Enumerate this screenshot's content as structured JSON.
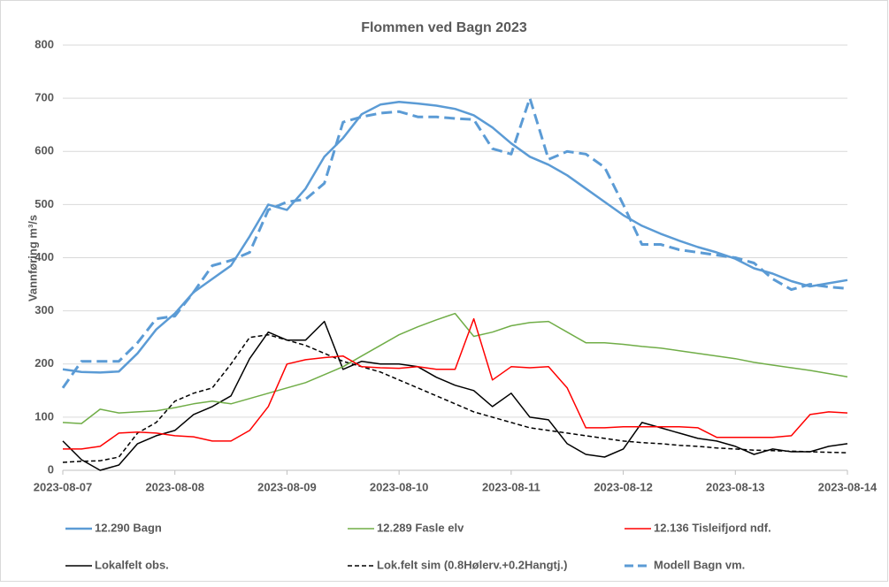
{
  "chart_data": {
    "type": "line",
    "title": "Flommen ved Bagn 2023",
    "y_label": "Vannføring m³/s",
    "categories": [
      "2023-08-07",
      null,
      null,
      null,
      null,
      null,
      "2023-08-08",
      null,
      null,
      null,
      null,
      null,
      "2023-08-09",
      null,
      null,
      null,
      null,
      null,
      "2023-08-10",
      null,
      null,
      null,
      null,
      null,
      "2023-08-11",
      null,
      null,
      null,
      null,
      null,
      "2023-08-12",
      null,
      null,
      null,
      null,
      null,
      "2023-08-13",
      null,
      null,
      null,
      null,
      null,
      "2023-08-14"
    ],
    "ylim": [
      0,
      800
    ],
    "yticks": [
      0,
      100,
      200,
      300,
      400,
      500,
      600,
      700,
      800
    ],
    "grid": true,
    "series": [
      {
        "name": "12.290 Bagn",
        "color": "#5b9bd5",
        "width": 2.5,
        "dash": false,
        "values": [
          190,
          185,
          184,
          186,
          220,
          265,
          295,
          335,
          360,
          385,
          440,
          500,
          490,
          530,
          590,
          625,
          670,
          688,
          693,
          690,
          686,
          680,
          668,
          645,
          615,
          590,
          575,
          555,
          530,
          505,
          480,
          460,
          445,
          432,
          420,
          410,
          398,
          380,
          370,
          356,
          346,
          352,
          358
        ]
      },
      {
        "name": "12.289 Fasle elv",
        "color": "#70ad47",
        "width": 1.5,
        "dash": false,
        "values": [
          90,
          88,
          115,
          108,
          110,
          112,
          118,
          125,
          130,
          125,
          135,
          145,
          155,
          165,
          180,
          195,
          215,
          235,
          255,
          270,
          283,
          295,
          252,
          260,
          272,
          278,
          280,
          260,
          240,
          240,
          237,
          233,
          230,
          225,
          220,
          215,
          210,
          203,
          198,
          193,
          188,
          182,
          176
        ]
      },
      {
        "name": "12.136 Tisleifjord ndf.",
        "color": "#ff0000",
        "width": 1.5,
        "dash": false,
        "values": [
          40,
          40,
          45,
          70,
          72,
          70,
          65,
          63,
          55,
          55,
          75,
          120,
          200,
          208,
          212,
          215,
          195,
          193,
          192,
          195,
          190,
          190,
          285,
          170,
          195,
          193,
          195,
          155,
          80,
          80,
          82,
          82,
          82,
          82,
          80,
          62,
          62,
          62,
          62,
          65,
          105,
          110,
          108
        ]
      },
      {
        "name": "Lokalfelt obs.",
        "color": "#000000",
        "width": 1.5,
        "dash": false,
        "values": [
          55,
          20,
          0,
          10,
          50,
          65,
          75,
          105,
          120,
          140,
          210,
          260,
          245,
          245,
          280,
          190,
          205,
          200,
          200,
          195,
          175,
          160,
          150,
          120,
          145,
          100,
          95,
          50,
          30,
          25,
          40,
          90,
          80,
          70,
          60,
          55,
          45,
          30,
          40,
          35,
          35,
          45,
          50
        ]
      },
      {
        "name": "Lok.felt sim (0.8Hølerv.+0.2Hangtj.)",
        "color": "#000000",
        "width": 1.5,
        "dash": true,
        "values": [
          15,
          17,
          18,
          25,
          70,
          90,
          130,
          145,
          155,
          200,
          250,
          255,
          245,
          235,
          220,
          205,
          195,
          185,
          170,
          155,
          140,
          125,
          110,
          100,
          90,
          80,
          75,
          70,
          65,
          60,
          55,
          52,
          50,
          47,
          45,
          42,
          40,
          38,
          37,
          36,
          35,
          34,
          33
        ]
      },
      {
        "name": "Modell Bagn vm.",
        "color": "#5b9bd5",
        "width": 3,
        "dash": true,
        "values": [
          155,
          205,
          205,
          205,
          240,
          285,
          290,
          335,
          385,
          395,
          410,
          490,
          505,
          510,
          540,
          655,
          665,
          672,
          675,
          665,
          665,
          662,
          660,
          605,
          595,
          700,
          585,
          600,
          595,
          570,
          500,
          425,
          425,
          415,
          410,
          405,
          400,
          390,
          360,
          340,
          350,
          345,
          342
        ]
      }
    ]
  }
}
